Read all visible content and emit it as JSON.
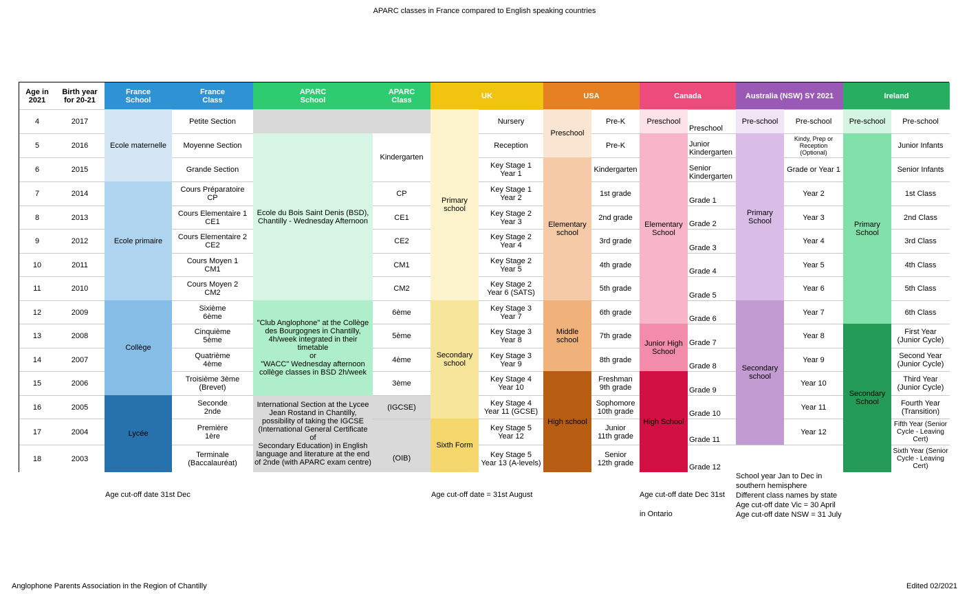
{
  "title": "APARC classes in France compared to English speaking countries",
  "headers": {
    "age": "Age in\n2021",
    "birth": "Birth year\nfor 20-21",
    "france_school": "France\nSchool",
    "france_class": "France\nClass",
    "aparc_school": "APARC\nSchool",
    "aparc_class": "APARC\nClass",
    "uk": "UK",
    "usa": "USA",
    "canada": "Canada",
    "australia": "Australia (NSW) SY 2021",
    "ireland": "Ireland"
  },
  "ages": [
    "4",
    "5",
    "6",
    "7",
    "8",
    "9",
    "10",
    "11",
    "12",
    "13",
    "14",
    "15",
    "16",
    "17",
    "18"
  ],
  "birth_years": [
    "2017",
    "2016",
    "2015",
    "2014",
    "2013",
    "2012",
    "2011",
    "2010",
    "2009",
    "2008",
    "2007",
    "2006",
    "2005",
    "2004",
    "2003"
  ],
  "france": {
    "schools": [
      "Ecole maternelle",
      "Ecole primaire",
      "Collège",
      "Lycée"
    ],
    "classes": [
      "Petite Section",
      "Moyenne Section",
      "Grande Section",
      "Cours Préparatoire\nCP",
      "Cours Elementaire 1\nCE1",
      "Cours Elementaire 2\nCE2",
      "Cours Moyen 1\nCM1",
      "Cours Moyen 2\nCM2",
      "Sixième\n6ème",
      "Cinquième\n5ème",
      "Quatrième\n4ème",
      "Troisième 3ème\n(Brevet)",
      "Seconde\n2nde",
      "Première\n1ère",
      "Terminale\n(Baccalauréat)"
    ]
  },
  "aparc": {
    "schools": [
      "Ecole du Bois Saint Denis (BSD),\nChantilly - Wednesday Afternoon",
      "\"Club Anglophone\" at the Collège\ndes Bourgognes in Chantilly,\n4h/week integrated in their\ntimetable\nor\n\"WACC\" Wednesday afternoon\ncollège classes in BSD 2h/week",
      "International Section at the Lycee\nJean Rostand in Chantilly,\npossibility of taking the IGCSE\n(International General Certificate of\nSecondary Education) in English\nlanguage and literature at the end\nof 2nde (with APARC exam centre)"
    ],
    "classes": [
      "Kindergarten",
      "CP",
      "CE1",
      "CE2",
      "CM1",
      "CM2",
      "6ème",
      "5ème",
      "4ème",
      "3ème",
      "(IGCSE)",
      "(OIB)"
    ]
  },
  "uk": {
    "groups": [
      "Primary\nschool",
      "Secondary\nschool",
      "Sixth Form"
    ],
    "classes": [
      "Nursery",
      "Reception",
      "Key Stage 1\nYear 1",
      "Key Stage 1\nYear 2",
      "Key Stage 2\nYear 3",
      "Key Stage 2\nYear 4",
      "Key Stage 2\nYear 5",
      "Key Stage 2\nYear 6 (SATS)",
      "Key Stage 3\nYear 7",
      "Key Stage 3\nYear 8",
      "Key Stage 3\nYear 9",
      "Key Stage 4\nYear 10",
      "Key Stage 4\nYear 11 (GCSE)",
      "Key Stage 5\nYear 12",
      "Key Stage 5\nYear 13 (A-levels)"
    ]
  },
  "usa": {
    "groups": [
      "Preschool",
      "Elementary\nschool",
      "Middle school",
      "High school"
    ],
    "classes": [
      "Pre-K",
      "Pre-K",
      "Kindergarten",
      "1st grade",
      "2nd grade",
      "3rd grade",
      "4th grade",
      "5th grade",
      "6th grade",
      "7th grade",
      "8th grade",
      "Freshman\n9th grade",
      "Sophomore\n10th grade",
      "Junior\n11th grade",
      "Senior\n12th grade"
    ]
  },
  "canada": {
    "groups": [
      "Preschool",
      "Elementary\nSchool",
      "Junior High\nSchool",
      "High School"
    ],
    "classes": [
      "Preschool",
      "Junior\nKindergarten",
      "Senior\nKindergarten",
      "Grade 1",
      "Grade 2",
      "Grade 3",
      "Grade 4",
      "Grade 5",
      "Grade 6",
      "Grade 7",
      "Grade 8",
      "Grade 9",
      "Grade 10",
      "Grade 11",
      "Grade 12"
    ]
  },
  "australia": {
    "groups": [
      "Pre-school",
      "Primary\nSchool",
      "Secondary\nschool"
    ],
    "classes": [
      "Pre-school",
      "Kindy, Prep or\nReception (Optional)",
      "Grade or Year 1",
      "Year 2",
      "Year 3",
      "Year 4",
      "Year 5",
      "Year 6",
      "Year 7",
      "Year 8",
      "Year 9",
      "Year 10",
      "Year 11",
      "Year 12"
    ]
  },
  "ireland": {
    "groups": [
      "Pre-school",
      "Primary\nSchool",
      "Secondary\nSchool"
    ],
    "classes": [
      "Pre-school",
      "Junior Infants",
      "Senior Infants",
      "1st Class",
      "2nd Class",
      "3rd Class",
      "4th Class",
      "5th Class",
      "6th Class",
      "First Year\n(Junior Cycle)",
      "Second Year\n(Junior Cycle)",
      "Third Year\n(Junior Cycle)",
      "Fourth Year\n(Transition)",
      "Fifth Year (Senior\nCycle - Leaving\nCert)",
      "Sixth Year (Senior\nCycle - Leaving\nCert)"
    ]
  },
  "notes": {
    "france": "Age cut-off date 31st Dec",
    "uk": "Age cut-off date = 31st August",
    "canada1": "Age cut-off date Dec 31st",
    "canada2": "in Ontario",
    "australia": "School year Jan to Dec in\nsouthern hemisphere\nDifferent class names by state\nAge cut-off date Vic = 30 April\nAge cut-off date NSW = 31 July"
  },
  "footer": {
    "left": "Anglophone Parents Association in the Region of Chantilly",
    "right": "Edited 02/2021"
  },
  "colors": {
    "france_header": "#2e93d4",
    "aparc_header": "#2ecc71",
    "uk_header": "#f1c40f",
    "usa_header": "#e67e22",
    "canada_header": "#ec4b7c",
    "australia_header": "#9b59b6",
    "ireland_header": "#27ae60"
  }
}
